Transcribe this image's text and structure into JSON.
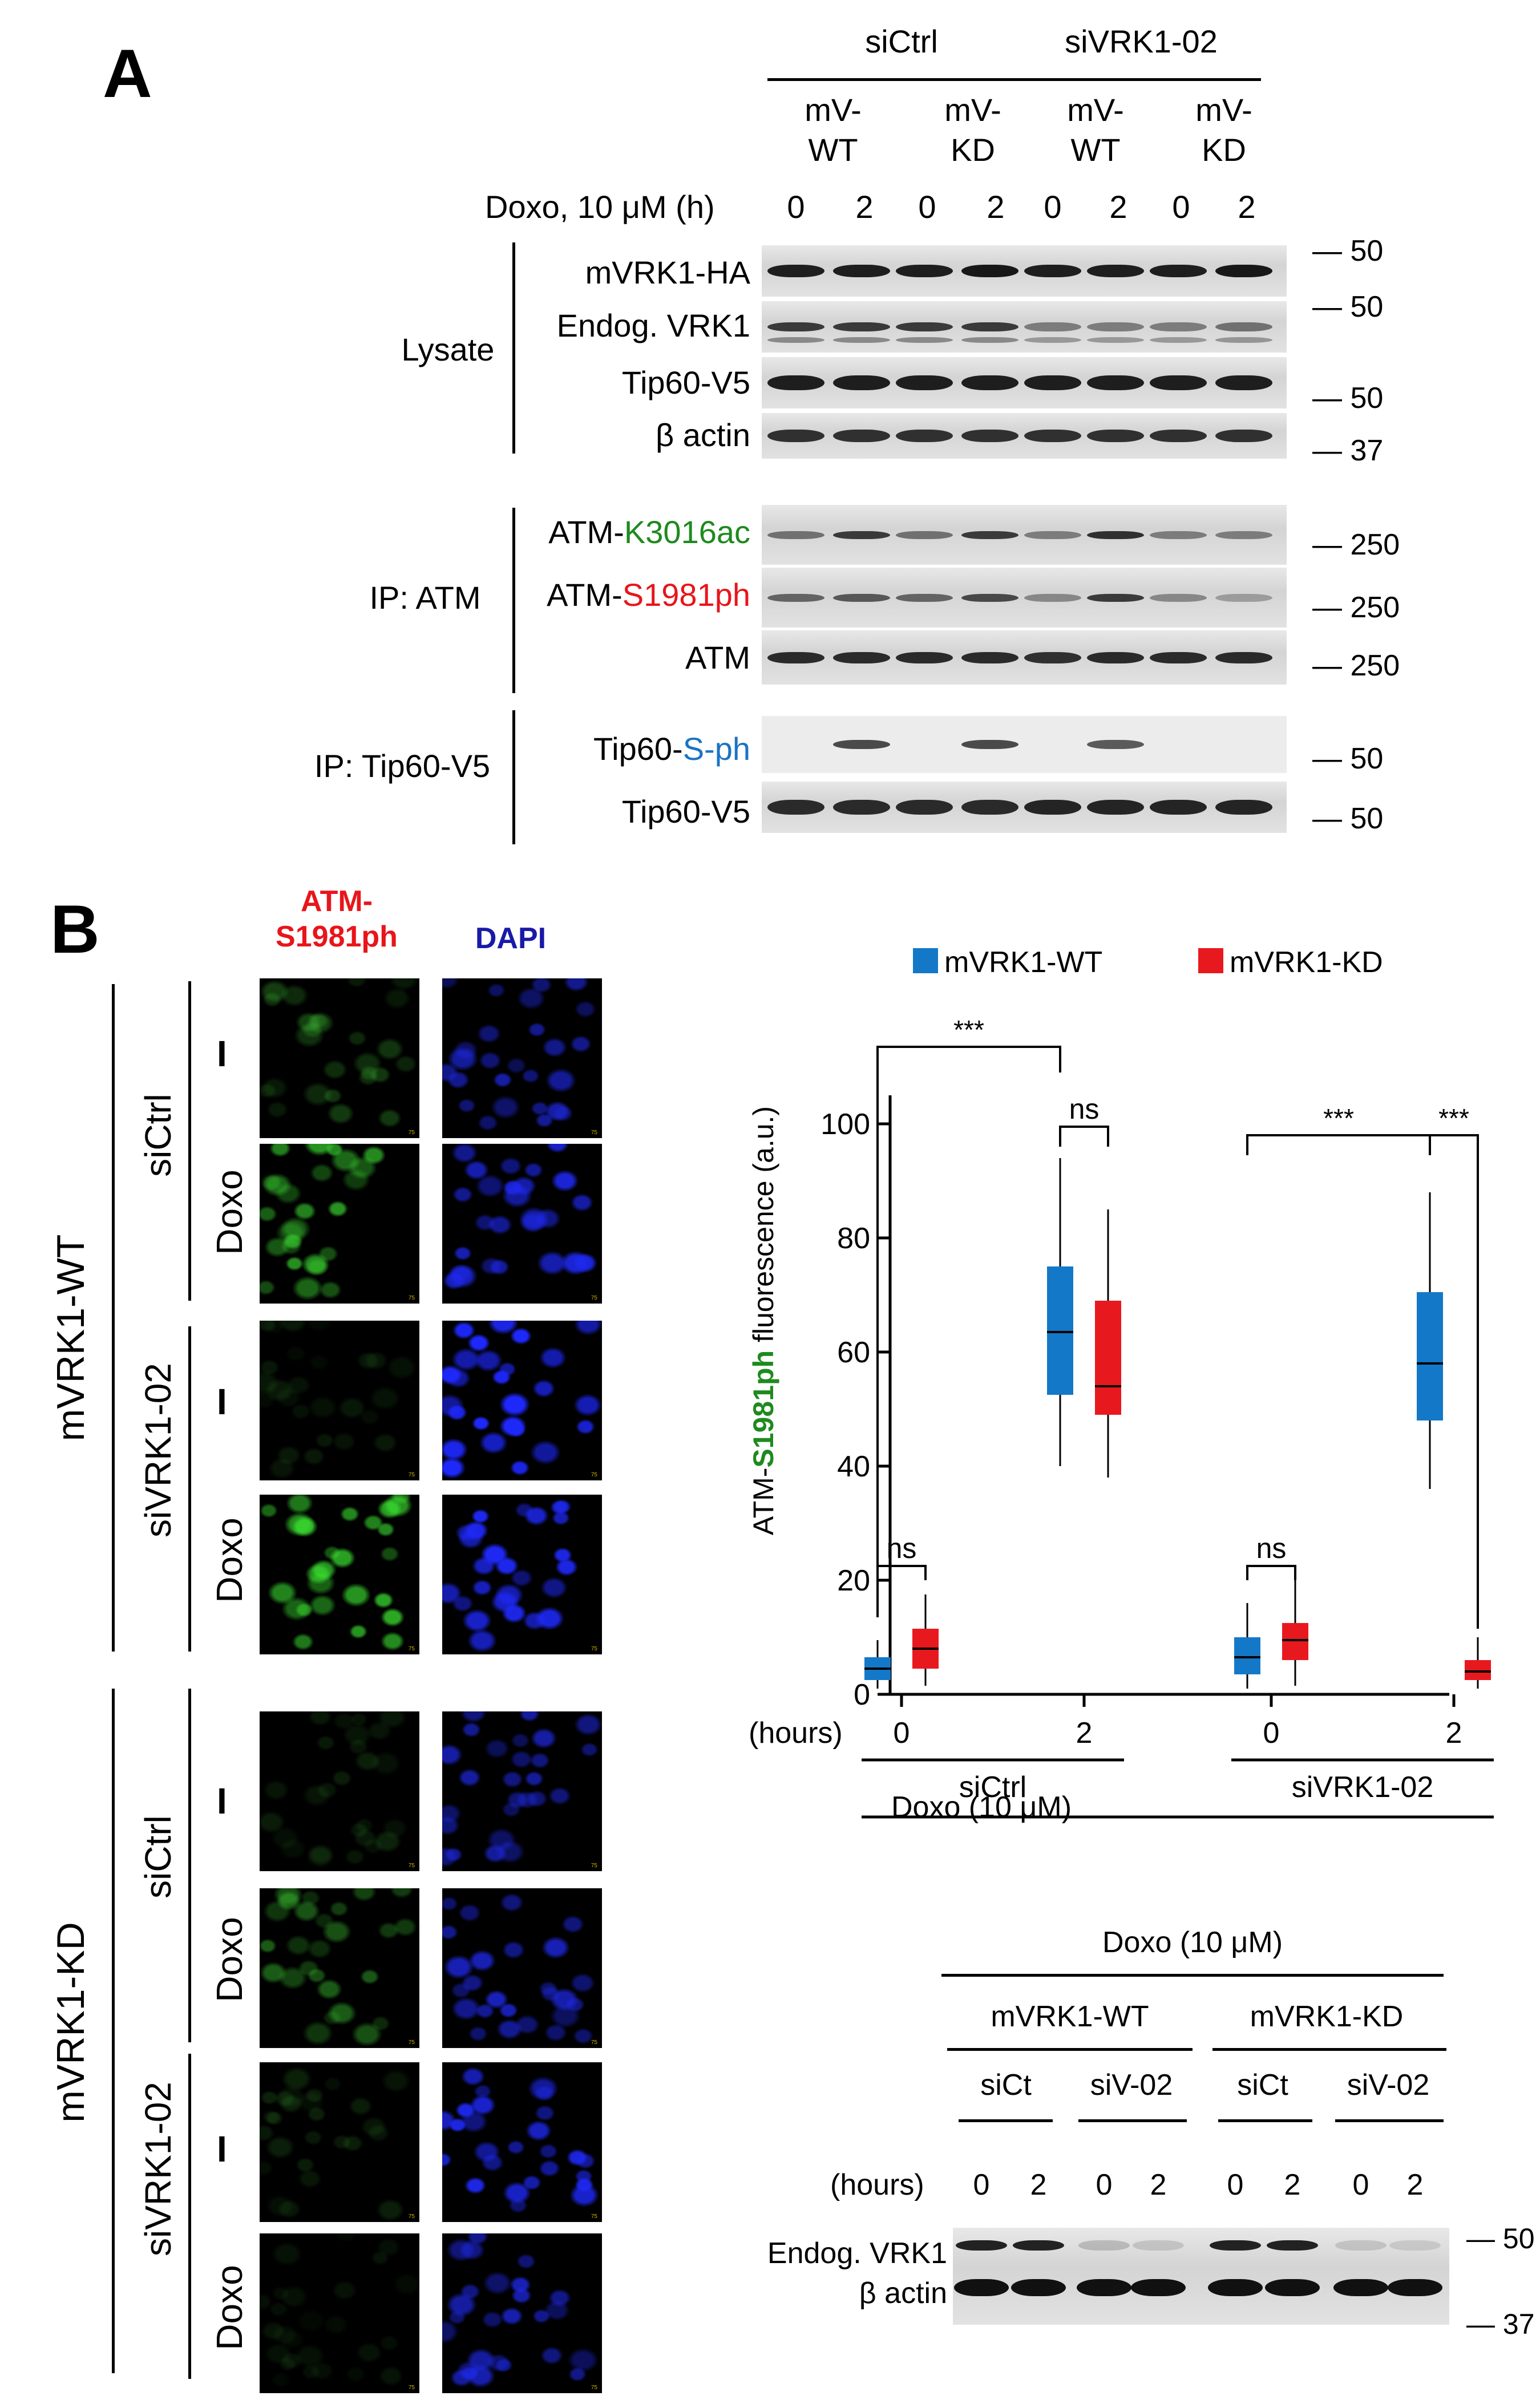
{
  "panelA": {
    "label": "A",
    "group1": "siCtrl",
    "group2": "siVRK1-02",
    "sub": [
      {
        "l1": "mV-",
        "l2": "WT"
      },
      {
        "l1": "mV-",
        "l2": "KD"
      },
      {
        "l1": "mV-",
        "l2": "WT"
      },
      {
        "l1": "mV-",
        "l2": "KD"
      }
    ],
    "doxo_label": "Doxo, 10 μM (h)",
    "timepoints": [
      "0",
      "2",
      "0",
      "2",
      "0",
      "2",
      "0",
      "2"
    ],
    "sections": {
      "lysate": "Lysate",
      "ip_atm": "IP: ATM",
      "ip_tip60": "IP: Tip60-V5"
    },
    "rows": {
      "r1": "mVRK1-HA",
      "r2": "Endog. VRK1",
      "r3": "Tip60-V5",
      "r4": "β actin",
      "r5a": "ATM-",
      "r5b": "K3016ac",
      "r6a": "ATM-",
      "r6b": "S1981ph",
      "r7": "ATM",
      "r8a": "Tip60-",
      "r8b": "S-ph",
      "r9": "Tip60-V5"
    },
    "mw": {
      "m1": "— 50",
      "m2": "— 50",
      "m3": "— 50",
      "m4": "— 37",
      "m5": "— 250",
      "m6": "— 250",
      "m7": "— 250",
      "m8": "— 50",
      "m9": "— 50"
    },
    "colors": {
      "green": "#1e8a1e",
      "red": "#e8151b",
      "blue": "#1a73c4"
    }
  },
  "panelB": {
    "label": "B",
    "col1a": "ATM-",
    "col1b": "S1981ph",
    "col2": "DAPI",
    "wt": "mVRK1-WT",
    "kd": "mVRK1-KD",
    "sictrl": "siCtrl",
    "sivrk": "siVRK1-02",
    "minus": "I",
    "doxo": "Doxo",
    "scale_text": "75"
  },
  "chart_data": {
    "type": "box",
    "legend": [
      "mVRK1-WT",
      "mVRK1-KD"
    ],
    "legend_colors": [
      "#1478c8",
      "#e8191e"
    ],
    "ylabel_a": "ATM-",
    "ylabel_b": "S1981ph",
    "ylabel_c": " fluorescence (a.u.)",
    "yticks": [
      "0",
      "20",
      "40",
      "60",
      "80",
      "100"
    ],
    "ylim": [
      0,
      105
    ],
    "xlabel_hours": "(hours)",
    "x_groups": [
      {
        "time": "0",
        "group": "siCtrl"
      },
      {
        "time": "2",
        "group": "siCtrl"
      },
      {
        "time": "0",
        "group": "siVRK1-02"
      },
      {
        "time": "2",
        "group": "siVRK1-02"
      }
    ],
    "group_labels": [
      "siCtrl",
      "siVRK1-02"
    ],
    "doxo_label": "Doxo (10 μM)",
    "series": [
      {
        "name": "mVRK1-WT",
        "boxes": [
          {
            "min": 1,
            "q1": 2.5,
            "median": 4.5,
            "q3": 6.5,
            "max": 9.5
          },
          {
            "min": 40,
            "q1": 52.5,
            "median": 63.5,
            "q3": 75,
            "max": 94
          },
          {
            "min": 1,
            "q1": 3.5,
            "median": 6.5,
            "q3": 10,
            "max": 16
          },
          {
            "min": 36,
            "q1": 48,
            "median": 58,
            "q3": 70.5,
            "max": 88
          }
        ]
      },
      {
        "name": "mVRK1-KD",
        "boxes": [
          {
            "min": 1.5,
            "q1": 4.5,
            "median": 8,
            "q3": 11.5,
            "max": 17.5
          },
          {
            "min": 38,
            "q1": 49,
            "median": 54,
            "q3": 69,
            "max": 85
          },
          {
            "min": 1.5,
            "q1": 6,
            "median": 9.5,
            "q3": 12.5,
            "max": 21.5
          },
          {
            "min": 1,
            "q1": 2.5,
            "median": 4,
            "q3": 6,
            "max": 10
          }
        ]
      }
    ],
    "annotations": [
      "***",
      "ns",
      "ns",
      "***",
      "***"
    ]
  },
  "panelC": {
    "doxo": "Doxo (10 μM)",
    "wt": "mVRK1-WT",
    "kd": "mVRK1-KD",
    "sict": "siCt",
    "siv": "siV-02",
    "hours": "(hours)",
    "timepoints": [
      "0",
      "2",
      "0",
      "2",
      "0",
      "2",
      "0",
      "2"
    ],
    "row1": "Endog. VRK1",
    "row2": "β actin",
    "mw1": "— 50",
    "mw2": "— 37",
    "wt_color": "#1a1aa8",
    "kd_color": "#e8151b"
  }
}
